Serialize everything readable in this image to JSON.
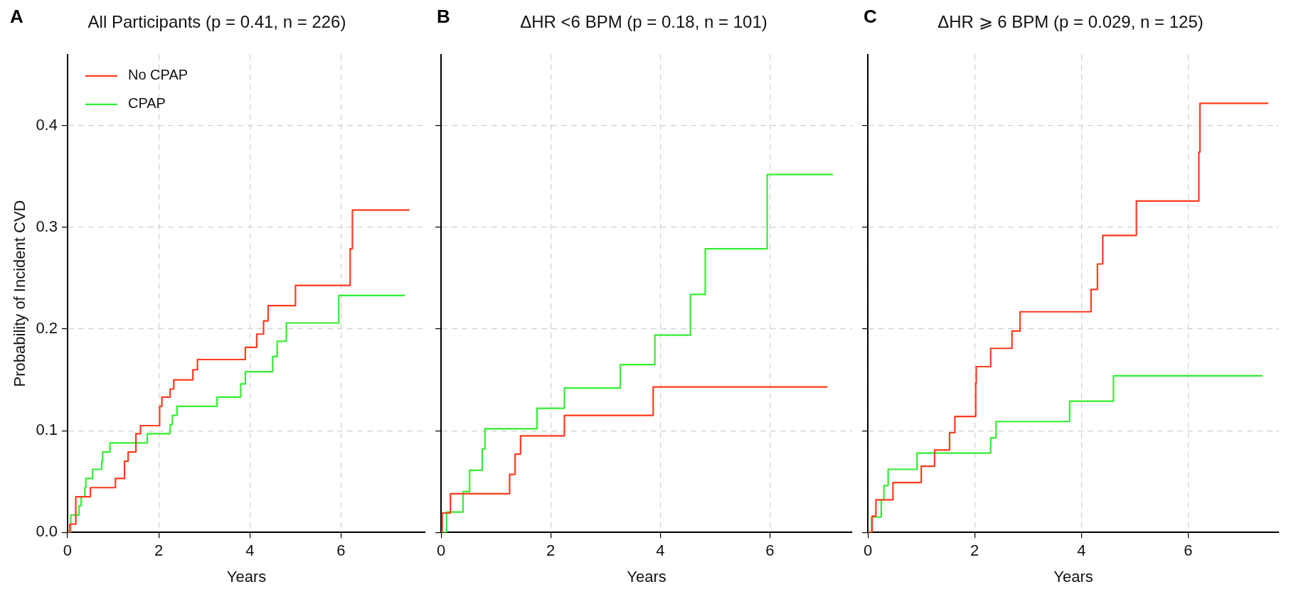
{
  "chart_data": [
    {
      "type": "step",
      "title": "All Participants (p = 0.41, n = 226)",
      "annotations": [
        "A"
      ],
      "xlabel": "Years",
      "ylabel": "Probability of Incident CVD",
      "xlim": [
        0,
        7.85
      ],
      "xticks": [
        0,
        2,
        4,
        6
      ],
      "ylim": [
        0,
        0.47
      ],
      "yticks": [
        {
          "value": 0,
          "label": "0.0"
        },
        0.1,
        0.2,
        0.3,
        0.4
      ],
      "grid": true,
      "legend": "top left",
      "marker": "none",
      "series": [
        {
          "name": "No CPAP",
          "color": "#ff3b1f",
          "x": [
            0,
            0.05,
            0.18,
            0.5,
            1.05,
            1.25,
            1.33,
            1.5,
            1.6,
            2.02,
            2.07,
            2.25,
            2.33,
            2.75,
            2.85,
            3.9,
            4.15,
            4.3,
            4.4,
            5.0,
            6.2,
            6.25,
            7.5
          ],
          "values": [
            0,
            0.008,
            0.035,
            0.044,
            0.053,
            0.07,
            0.079,
            0.097,
            0.105,
            0.124,
            0.133,
            0.141,
            0.15,
            0.16,
            0.17,
            0.182,
            0.195,
            0.208,
            0.223,
            0.243,
            0.279,
            0.317,
            0.317
          ]
        },
        {
          "name": "CPAP",
          "color": "#33ee33",
          "x": [
            0,
            0.07,
            0.25,
            0.3,
            0.38,
            0.4,
            0.55,
            0.75,
            0.77,
            0.93,
            1.75,
            2.25,
            2.3,
            2.4,
            3.28,
            3.8,
            3.9,
            4.5,
            4.6,
            4.8,
            5.95,
            7.4
          ],
          "values": [
            0,
            0.017,
            0.026,
            0.035,
            0.044,
            0.053,
            0.062,
            0.07,
            0.079,
            0.088,
            0.097,
            0.106,
            0.115,
            0.124,
            0.133,
            0.146,
            0.158,
            0.173,
            0.188,
            0.206,
            0.233,
            0.233
          ]
        }
      ]
    },
    {
      "type": "step",
      "title": "ΔHR <6 BPM (p = 0.18, n = 101)",
      "annotations": [
        "B"
      ],
      "xlabel": "Years",
      "xlim": [
        0,
        7.5
      ],
      "xticks": [
        0,
        2,
        4,
        6
      ],
      "ylim": [
        0,
        0.47
      ],
      "yticks": [
        0,
        0.1,
        0.2,
        0.3,
        0.4
      ],
      "tick_labels": "x",
      "grid": true,
      "marker": "none",
      "series": [
        {
          "color": "#ff3b1f",
          "x": [
            0,
            0.02,
            0.17,
            1.25,
            1.35,
            1.45,
            2.25,
            3.87,
            7.05
          ],
          "values": [
            0,
            0.019,
            0.038,
            0.057,
            0.077,
            0.095,
            0.115,
            0.143,
            0.143
          ]
        },
        {
          "color": "#33ee33",
          "x": [
            0,
            0.1,
            0.4,
            0.52,
            0.75,
            0.8,
            1.75,
            2.25,
            3.27,
            3.9,
            4.55,
            4.82,
            5.95,
            7.15
          ],
          "values": [
            0,
            0.02,
            0.04,
            0.061,
            0.082,
            0.102,
            0.122,
            0.142,
            0.165,
            0.194,
            0.234,
            0.279,
            0.352,
            0.352
          ]
        }
      ]
    },
    {
      "type": "step",
      "title": "ΔHR ⩾ 6 BPM (p = 0.029, n = 125)",
      "annotations": [
        "C"
      ],
      "xlabel": "Years",
      "xlim": [
        0,
        7.7
      ],
      "xticks": [
        0,
        2,
        4,
        6
      ],
      "ylim": [
        0,
        0.47
      ],
      "yticks": [
        0,
        0.1,
        0.2,
        0.3,
        0.4
      ],
      "tick_labels": "x",
      "grid": true,
      "marker": "none",
      "series": [
        {
          "color": "#ff3b1f",
          "x": [
            0,
            0.08,
            0.15,
            0.47,
            1.0,
            1.25,
            1.53,
            1.63,
            2.02,
            2.03,
            2.3,
            2.7,
            2.85,
            4.18,
            4.3,
            4.4,
            5.03,
            6.2,
            6.22,
            7.5
          ],
          "values": [
            0,
            0.016,
            0.032,
            0.049,
            0.065,
            0.081,
            0.098,
            0.114,
            0.147,
            0.163,
            0.181,
            0.198,
            0.217,
            0.239,
            0.264,
            0.292,
            0.326,
            0.374,
            0.422,
            0.422
          ]
        },
        {
          "color": "#33ee33",
          "x": [
            0,
            0.07,
            0.25,
            0.3,
            0.38,
            0.92,
            2.3,
            2.4,
            3.78,
            4.6,
            7.4
          ],
          "values": [
            0,
            0.015,
            0.032,
            0.046,
            0.062,
            0.078,
            0.093,
            0.109,
            0.129,
            0.154,
            0.154
          ]
        }
      ]
    }
  ]
}
